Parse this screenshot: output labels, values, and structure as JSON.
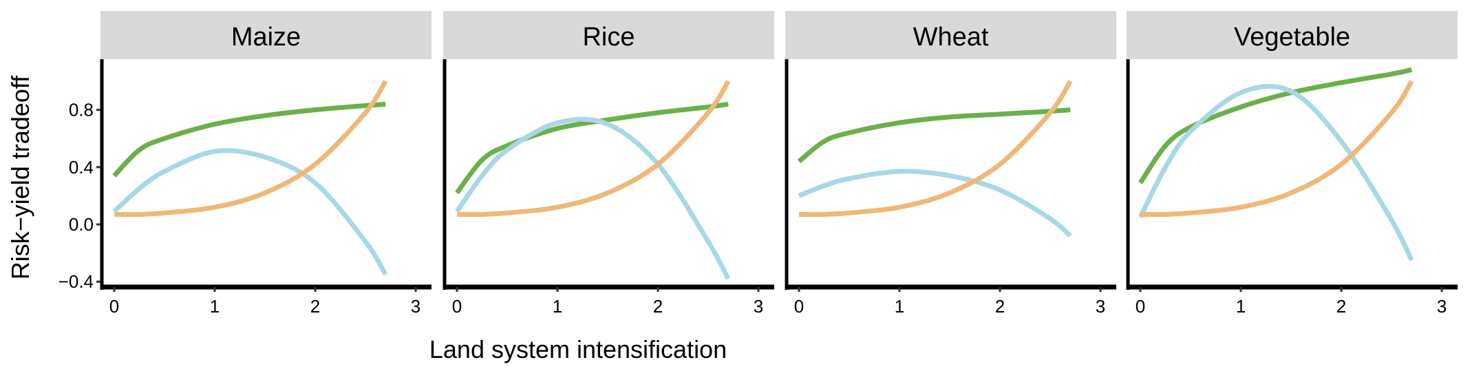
{
  "chart_data": {
    "type": "line",
    "xlabel": "Land system intensification",
    "ylabel": "Risk−yield tradeoff",
    "xlim": [
      -0.14,
      3.14
    ],
    "ylim": [
      -0.44,
      1.15
    ],
    "x_ticks": [
      "0",
      "1",
      "2",
      "3"
    ],
    "x_tick_values": [
      0,
      1,
      2,
      3
    ],
    "y_ticks": [
      "−0.4",
      "0.0",
      "0.4",
      "0.8"
    ],
    "y_tick_values": [
      -0.4,
      0,
      0.4,
      0.8
    ],
    "grid": false,
    "colors": {
      "green": "#6ab04c",
      "blue": "#a8d8e6",
      "orange": "#f0b878",
      "strip": "#d9d9d9"
    },
    "x": [
      0,
      0.25,
      0.5,
      1,
      1.5,
      2,
      2.5,
      2.7
    ],
    "panels": [
      {
        "title": "Maize",
        "series": [
          {
            "name": "green",
            "values": [
              0.34,
              0.52,
              0.6,
              0.7,
              0.76,
              0.8,
              0.83,
              0.84
            ]
          },
          {
            "name": "blue",
            "values": [
              0.09,
              0.25,
              0.37,
              0.51,
              0.47,
              0.29,
              -0.12,
              -0.35
            ]
          },
          {
            "name": "orange",
            "values": [
              0.07,
              0.07,
              0.08,
              0.12,
              0.22,
              0.42,
              0.78,
              1.0
            ]
          }
        ]
      },
      {
        "title": "Rice",
        "series": [
          {
            "name": "green",
            "values": [
              0.22,
              0.45,
              0.55,
              0.67,
              0.73,
              0.78,
              0.82,
              0.84
            ]
          },
          {
            "name": "blue",
            "values": [
              0.09,
              0.34,
              0.52,
              0.71,
              0.7,
              0.42,
              -0.12,
              -0.38
            ]
          },
          {
            "name": "orange",
            "values": [
              0.07,
              0.07,
              0.08,
              0.12,
              0.22,
              0.42,
              0.78,
              1.0
            ]
          }
        ]
      },
      {
        "title": "Wheat",
        "series": [
          {
            "name": "green",
            "values": [
              0.44,
              0.58,
              0.64,
              0.71,
              0.75,
              0.77,
              0.79,
              0.8
            ]
          },
          {
            "name": "blue",
            "values": [
              0.2,
              0.27,
              0.32,
              0.37,
              0.34,
              0.24,
              0.04,
              -0.08
            ]
          },
          {
            "name": "orange",
            "values": [
              0.07,
              0.07,
              0.08,
              0.12,
              0.22,
              0.42,
              0.78,
              1.0
            ]
          }
        ]
      },
      {
        "title": "Vegetable",
        "series": [
          {
            "name": "green",
            "values": [
              0.29,
              0.55,
              0.68,
              0.82,
              0.92,
              0.99,
              1.05,
              1.08
            ]
          },
          {
            "name": "blue",
            "values": [
              0.05,
              0.4,
              0.65,
              0.92,
              0.93,
              0.58,
              0.03,
              -0.25
            ]
          },
          {
            "name": "orange",
            "values": [
              0.07,
              0.07,
              0.08,
              0.12,
              0.22,
              0.42,
              0.78,
              1.0
            ]
          }
        ]
      }
    ]
  }
}
